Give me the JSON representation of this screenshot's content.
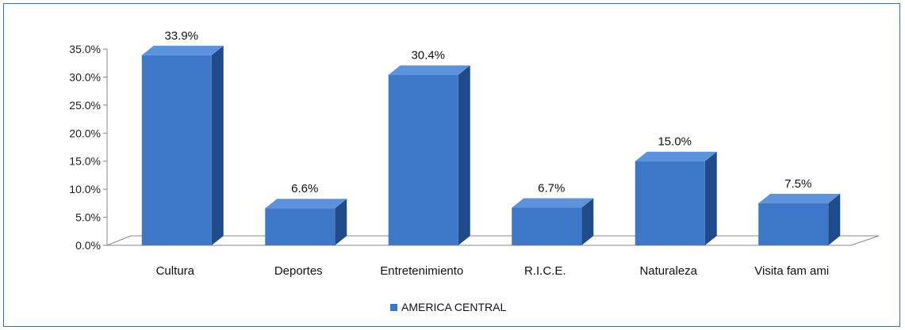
{
  "chart_data": {
    "type": "bar",
    "categories": [
      "Cultura",
      "Deportes",
      "Entretenimiento",
      "R.I.C.E.",
      "Naturaleza",
      "Visita fam ami"
    ],
    "series": [
      {
        "name": "AMERICA CENTRAL",
        "values": [
          33.9,
          6.6,
          30.4,
          6.7,
          15.0,
          7.5
        ]
      }
    ],
    "data_labels": [
      "33.9%",
      "6.6%",
      "30.4%",
      "6.7%",
      "15.0%",
      "7.5%"
    ],
    "y_ticks": [
      "0.0%",
      "5.0%",
      "10.0%",
      "15.0%",
      "20.0%",
      "25.0%",
      "30.0%",
      "35.0%"
    ],
    "ylim": [
      0,
      35
    ],
    "title": "",
    "xlabel": "",
    "ylabel": "",
    "grid": false,
    "legend_position": "bottom",
    "style": "3d-column",
    "colors": {
      "bar_front": "#3d78c8",
      "bar_side": "#1f4b8a",
      "bar_top": "#5d93dc",
      "floor": "#ffffff",
      "axis": "#888888",
      "border": "#4a6fa5"
    }
  }
}
